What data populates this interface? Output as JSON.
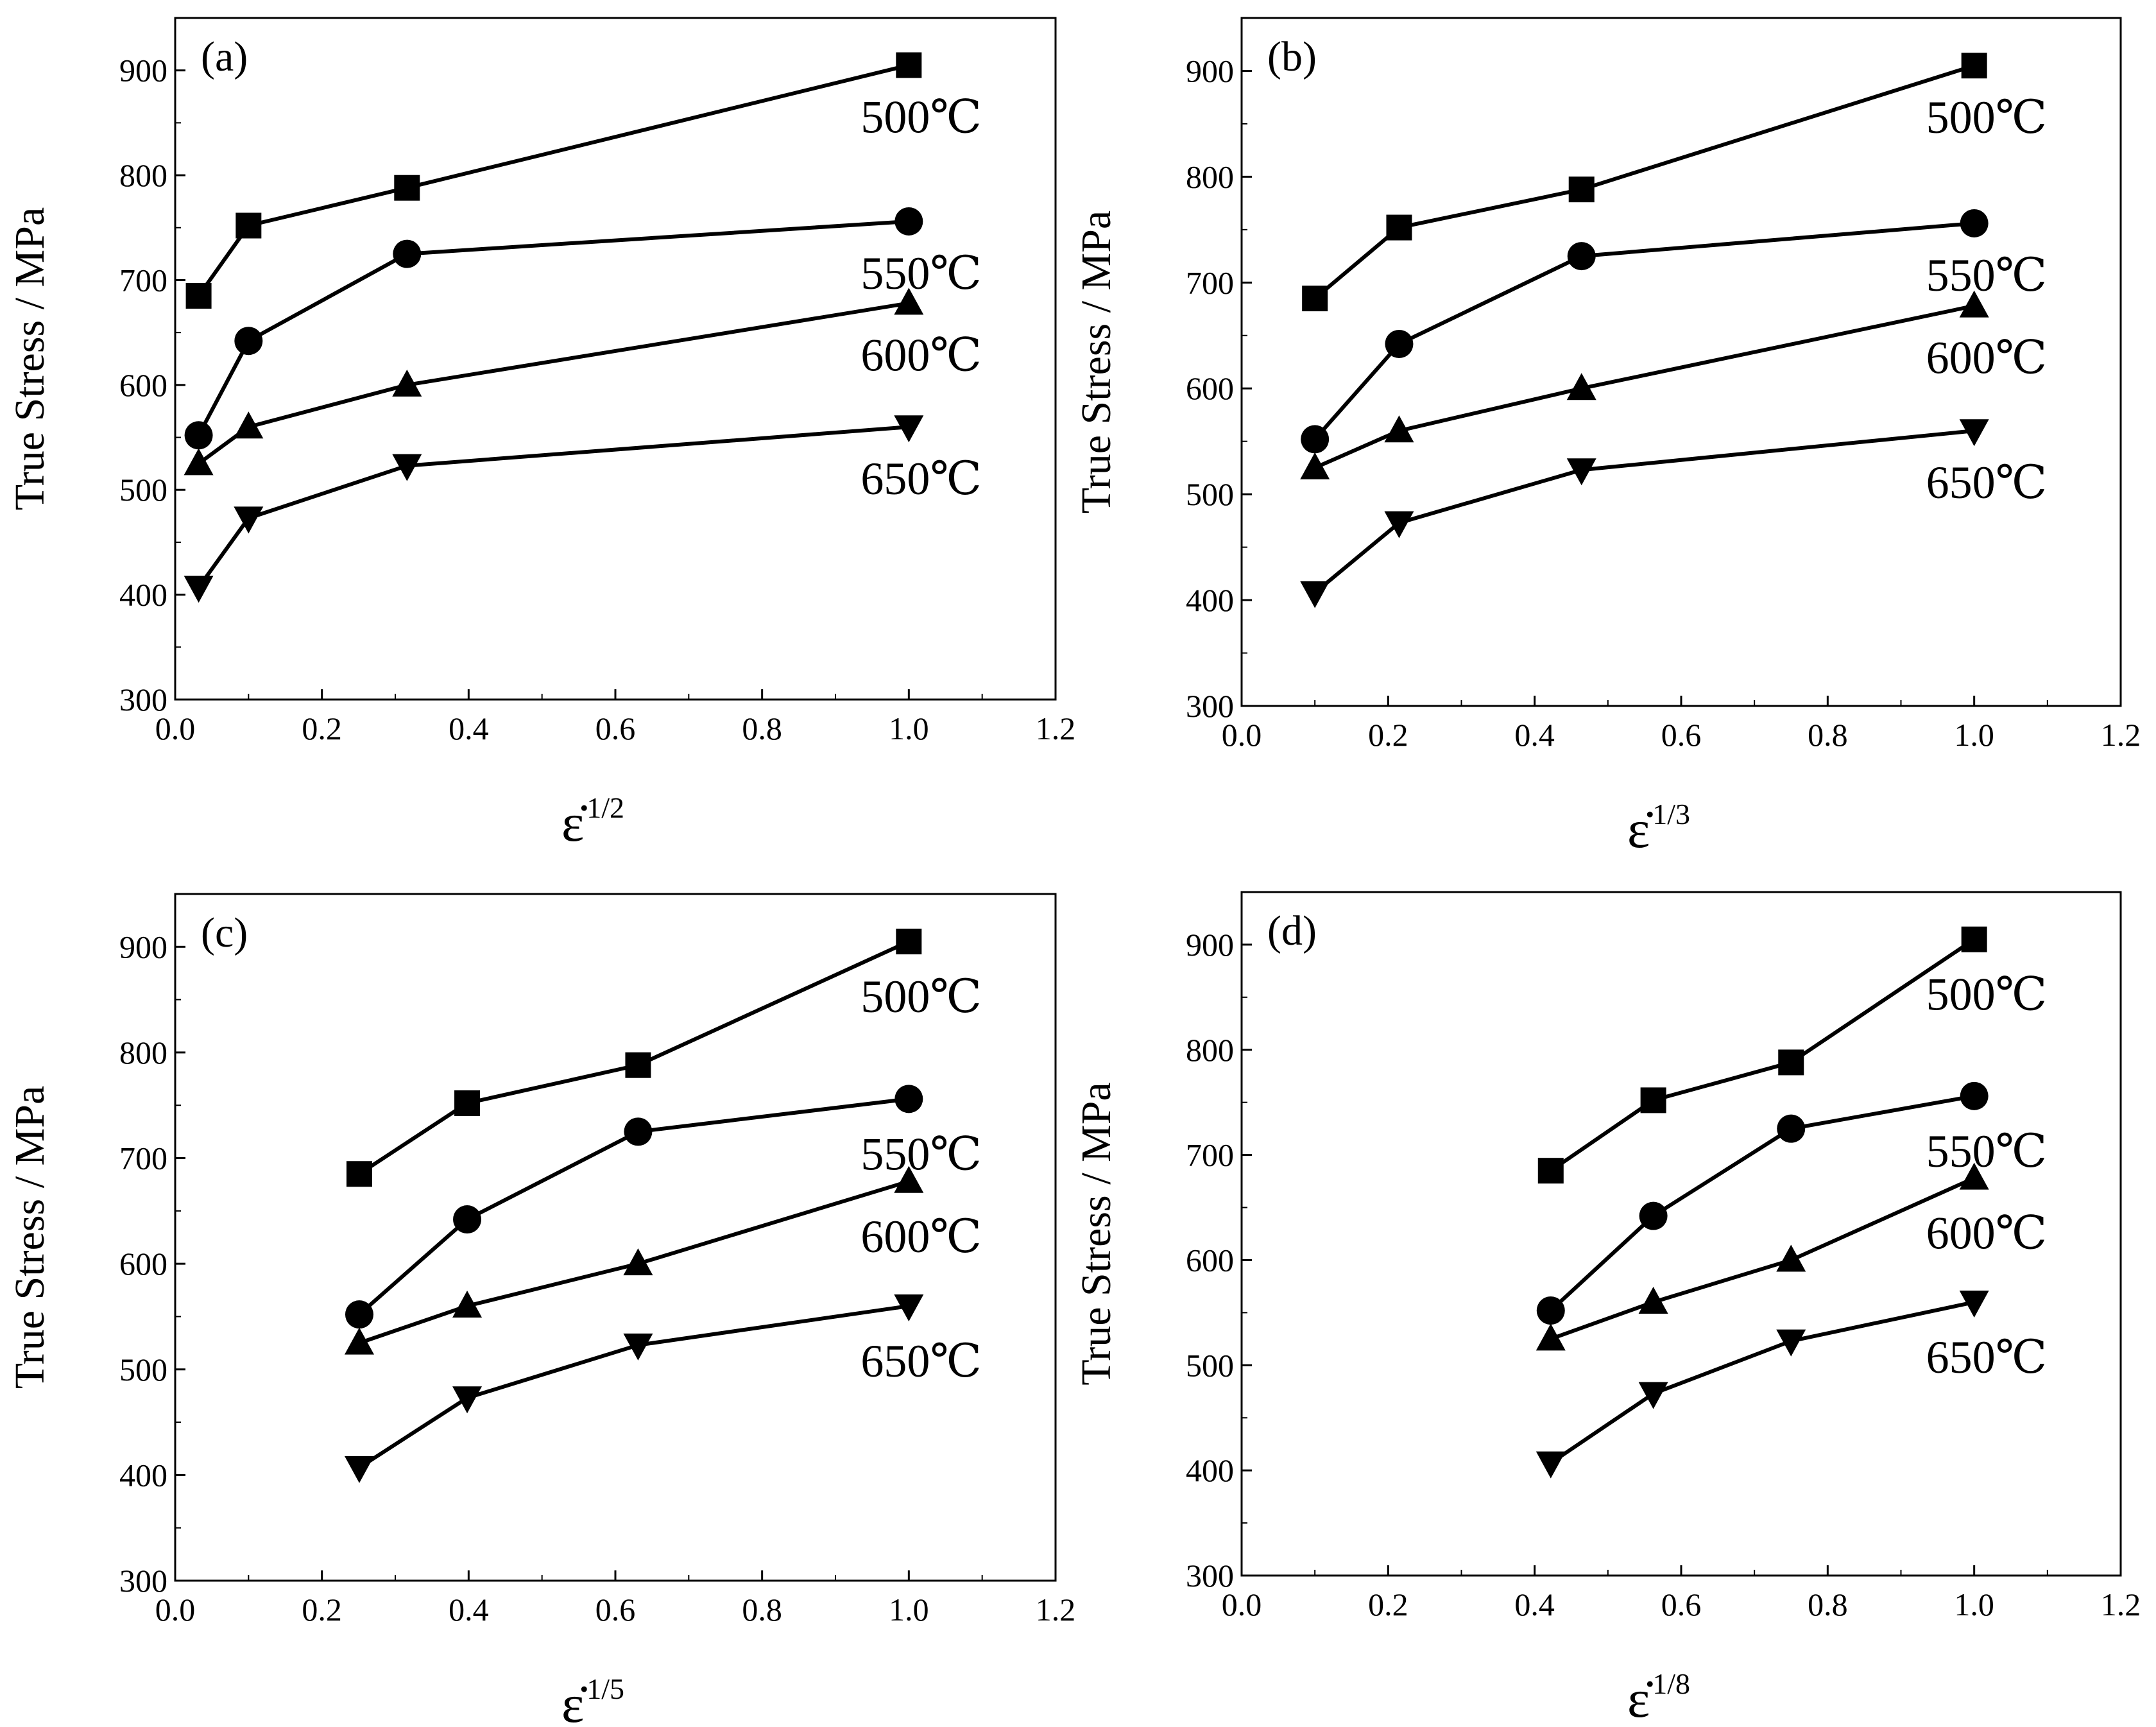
{
  "figure": {
    "colors": {
      "axis": "#000000",
      "series": "#000000",
      "background": "#ffffff"
    }
  },
  "chart_data": [
    {
      "type": "line",
      "panel": "(a)",
      "xlabel": "ε̇",
      "xlabel_exponent": "1/2",
      "ylabel": "True Stress / MPa",
      "xlim": [
        0.0,
        1.2
      ],
      "ylim": [
        300,
        950
      ],
      "xticks": [
        "0.0",
        "0.2",
        "0.4",
        "0.6",
        "0.8",
        "1.0",
        "1.2"
      ],
      "yticks": [
        "300",
        "400",
        "500",
        "600",
        "700",
        "800",
        "900"
      ],
      "x": [
        0.032,
        0.1,
        0.316,
        1.0
      ],
      "series": [
        {
          "name": "500℃",
          "marker": "square",
          "values": [
            685,
            752,
            788,
            905
          ]
        },
        {
          "name": "550℃",
          "marker": "circle",
          "values": [
            552,
            642,
            725,
            756
          ]
        },
        {
          "name": "600℃",
          "marker": "triangle-up",
          "values": [
            525,
            560,
            600,
            678
          ]
        },
        {
          "name": "650℃",
          "marker": "triangle-down",
          "values": [
            407,
            473,
            523,
            560
          ]
        }
      ]
    },
    {
      "type": "line",
      "panel": "(b)",
      "xlabel": "ε̇",
      "xlabel_exponent": "1/3",
      "ylabel": "True Stress / MPa",
      "xlim": [
        0.0,
        1.2
      ],
      "ylim": [
        300,
        950
      ],
      "xticks": [
        "0.0",
        "0.2",
        "0.4",
        "0.6",
        "0.8",
        "1.0",
        "1.2"
      ],
      "yticks": [
        "300",
        "400",
        "500",
        "600",
        "700",
        "800",
        "900"
      ],
      "x": [
        0.1,
        0.215,
        0.464,
        1.0
      ],
      "series": [
        {
          "name": "500℃",
          "marker": "square",
          "values": [
            685,
            752,
            788,
            905
          ]
        },
        {
          "name": "550℃",
          "marker": "circle",
          "values": [
            552,
            642,
            725,
            756
          ]
        },
        {
          "name": "600℃",
          "marker": "triangle-up",
          "values": [
            525,
            560,
            600,
            678
          ]
        },
        {
          "name": "650℃",
          "marker": "triangle-down",
          "values": [
            407,
            473,
            523,
            560
          ]
        }
      ]
    },
    {
      "type": "line",
      "panel": "(c)",
      "xlabel": "ε̇",
      "xlabel_exponent": "1/5",
      "ylabel": "True Stress / MPa",
      "xlim": [
        0.0,
        1.2
      ],
      "ylim": [
        300,
        950
      ],
      "xticks": [
        "0.0",
        "0.2",
        "0.4",
        "0.6",
        "0.8",
        "1.0",
        "1.2"
      ],
      "yticks": [
        "300",
        "400",
        "500",
        "600",
        "700",
        "800",
        "900"
      ],
      "x": [
        0.251,
        0.398,
        0.631,
        1.0
      ],
      "series": [
        {
          "name": "500℃",
          "marker": "square",
          "values": [
            685,
            752,
            788,
            905
          ]
        },
        {
          "name": "550℃",
          "marker": "circle",
          "values": [
            552,
            642,
            725,
            756
          ]
        },
        {
          "name": "600℃",
          "marker": "triangle-up",
          "values": [
            525,
            560,
            600,
            678
          ]
        },
        {
          "name": "650℃",
          "marker": "triangle-down",
          "values": [
            407,
            473,
            523,
            560
          ]
        }
      ]
    },
    {
      "type": "line",
      "panel": "(d)",
      "xlabel": "ε̇",
      "xlabel_exponent": "1/8",
      "ylabel": "True Stress / MPa",
      "xlim": [
        0.0,
        1.2
      ],
      "ylim": [
        300,
        950
      ],
      "xticks": [
        "0.0",
        "0.2",
        "0.4",
        "0.6",
        "0.8",
        "1.0",
        "1.2"
      ],
      "yticks": [
        "300",
        "400",
        "500",
        "600",
        "700",
        "800",
        "900"
      ],
      "x": [
        0.422,
        0.562,
        0.75,
        1.0
      ],
      "series": [
        {
          "name": "500℃",
          "marker": "square",
          "values": [
            685,
            752,
            788,
            905
          ]
        },
        {
          "name": "550℃",
          "marker": "circle",
          "values": [
            552,
            642,
            725,
            756
          ]
        },
        {
          "name": "600℃",
          "marker": "triangle-up",
          "values": [
            525,
            560,
            600,
            678
          ]
        },
        {
          "name": "650℃",
          "marker": "triangle-down",
          "values": [
            407,
            473,
            523,
            560
          ]
        }
      ]
    }
  ]
}
